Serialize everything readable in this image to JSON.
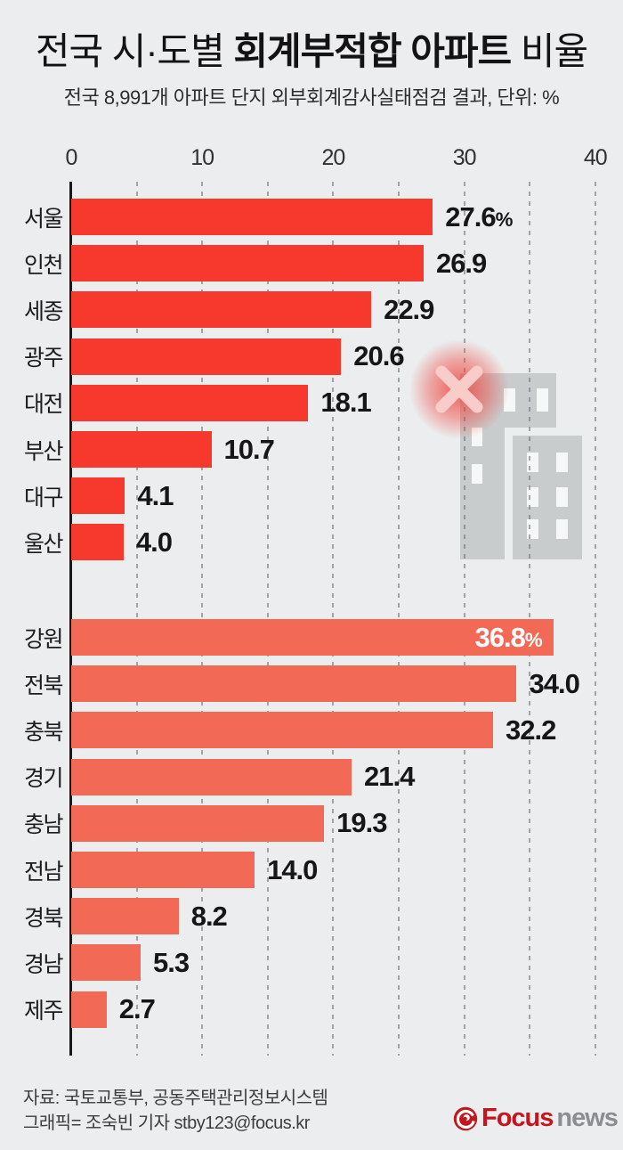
{
  "header": {
    "title_pre": "전국 시·도별 ",
    "title_emph": "회계부적합 아파트",
    "title_post": " 비율",
    "subtitle": "전국 8,991개 아파트 단지 외부회계감사실태점검 결과, 단위: %"
  },
  "chart_data": {
    "type": "bar",
    "orientation": "horizontal",
    "title": "전국 시·도별 회계부적합 아파트 비율",
    "subtitle": "전국 8,991개 아파트 단지 외부회계감사실태점검 결과",
    "unit": "%",
    "xlim": [
      0,
      40
    ],
    "axis_ticks": [
      0,
      10,
      20,
      30,
      40
    ],
    "grid": "dashed vertical lines every 5 units",
    "legend": "none",
    "series": [
      {
        "name": "cities",
        "color": "#f6392c",
        "categories": [
          "서울",
          "인천",
          "세종",
          "광주",
          "대전",
          "부산",
          "대구",
          "울산"
        ],
        "values": [
          27.6,
          26.9,
          22.9,
          20.6,
          18.1,
          10.7,
          4.1,
          4.0
        ],
        "value_labels": [
          "27.6%",
          "26.9",
          "22.9",
          "20.6",
          "18.1",
          "10.7",
          "4.1",
          "4.0"
        ],
        "inside_label_index": -1
      },
      {
        "name": "provinces",
        "color": "#f26a56",
        "categories": [
          "강원",
          "전북",
          "충북",
          "경기",
          "충남",
          "전남",
          "경북",
          "경남",
          "제주"
        ],
        "values": [
          36.8,
          34.0,
          32.2,
          21.4,
          19.3,
          14.0,
          8.2,
          5.3,
          2.7
        ],
        "value_labels": [
          "36.8%",
          "34.0",
          "32.2",
          "21.4",
          "19.3",
          "14.0",
          "8.2",
          "5.3",
          "2.7"
        ],
        "inside_label_index": 0
      }
    ]
  },
  "decor": {
    "building_color": "#c9cccd",
    "window_color": "#f6f7f7",
    "x_mark_color": "#f8cdc9",
    "glow_color": "#f04139"
  },
  "footer": {
    "source": "자료: 국토교통부, 공동주택관리정보시스템",
    "credit": "그래픽= 조숙빈 기자 stby123@focus.kr"
  },
  "logo": {
    "brand": "Focus",
    "suffix": "news",
    "brand_color": "#c4161c",
    "suffix_color": "#8a8e91"
  }
}
